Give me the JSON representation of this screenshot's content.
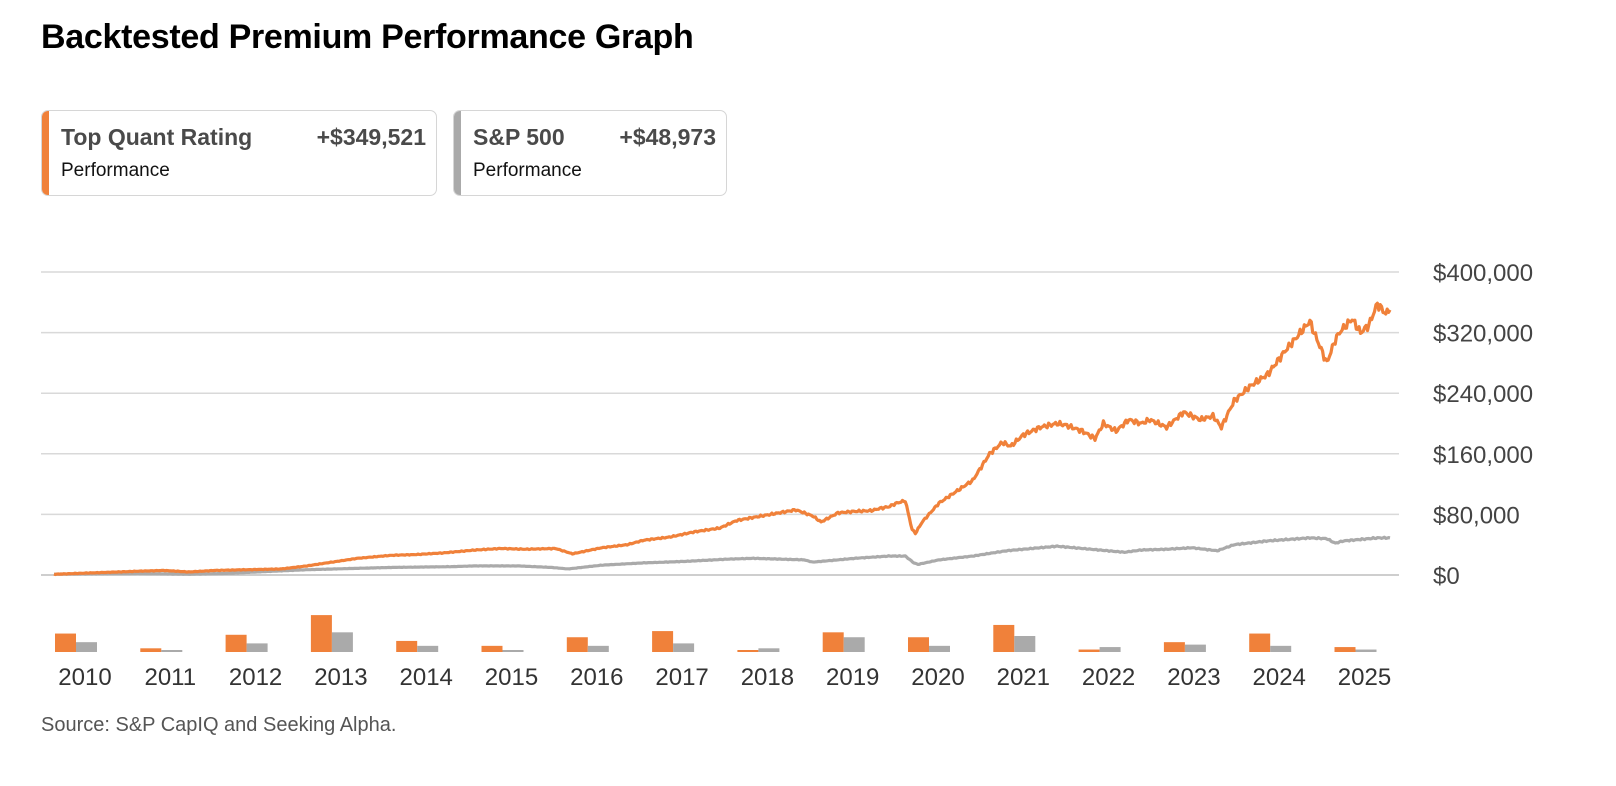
{
  "title": "Backtested Premium Performance Graph",
  "legend": [
    {
      "name": "Top Quant Rating",
      "value": "+$349,521",
      "sub": "Performance",
      "color": "#f0813a"
    },
    {
      "name": "S&P 500",
      "value": "+$48,973",
      "sub": "Performance",
      "color": "#aaaaaa"
    }
  ],
  "source": "Source: S&P CapIQ and Seeking Alpha.",
  "chart_data": {
    "type": "line",
    "title": "Backtested Premium Performance Graph",
    "xlabel": "",
    "ylabel": "",
    "ylim": [
      0,
      400000
    ],
    "y_ticks": [
      0,
      80000,
      160000,
      240000,
      320000,
      400000
    ],
    "y_tick_labels": [
      "$0",
      "$80,000",
      "$160,000",
      "$240,000",
      "$320,000",
      "$400,000"
    ],
    "x_range": [
      2010.0,
      2025.85
    ],
    "series": [
      {
        "name": "Top Quant Rating",
        "color": "#f0813a",
        "x": [
          2010.0,
          2010.5,
          2011.0,
          2011.3,
          2011.6,
          2011.9,
          2012.3,
          2012.7,
          2013.0,
          2013.3,
          2013.6,
          2014.0,
          2014.3,
          2014.6,
          2015.0,
          2015.3,
          2015.6,
          2015.95,
          2016.15,
          2016.5,
          2016.8,
          2017.0,
          2017.3,
          2017.6,
          2017.9,
          2018.1,
          2018.4,
          2018.7,
          2018.8,
          2019.0,
          2019.1,
          2019.3,
          2019.5,
          2019.7,
          2019.8,
          2019.9,
          2020.0,
          2020.1,
          2020.18,
          2020.22,
          2020.3,
          2020.5,
          2020.7,
          2020.9,
          2021.1,
          2021.25,
          2021.35,
          2021.5,
          2021.7,
          2021.9,
          2022.0,
          2022.2,
          2022.35,
          2022.45,
          2022.6,
          2022.75,
          2022.9,
          2023.0,
          2023.2,
          2023.4,
          2023.6,
          2023.75,
          2023.85,
          2024.0,
          2024.2,
          2024.4,
          2024.6,
          2024.75,
          2024.9,
          2024.95,
          2025.1,
          2025.2,
          2025.25,
          2025.4,
          2025.5,
          2025.6,
          2025.7,
          2025.8,
          2025.85
        ],
        "y": [
          1000,
          3000,
          5000,
          6000,
          4000,
          6000,
          7000,
          8000,
          12000,
          17000,
          22000,
          26000,
          27000,
          29000,
          33000,
          35000,
          34000,
          35000,
          28000,
          36000,
          40000,
          46000,
          50000,
          57000,
          62000,
          72000,
          78000,
          84000,
          86000,
          78000,
          70000,
          82000,
          84000,
          85000,
          88000,
          90000,
          95000,
          98000,
          60000,
          55000,
          70000,
          95000,
          110000,
          125000,
          160000,
          175000,
          170000,
          185000,
          195000,
          200000,
          198000,
          190000,
          180000,
          200000,
          190000,
          205000,
          200000,
          205000,
          195000,
          215000,
          205000,
          210000,
          195000,
          230000,
          250000,
          265000,
          295000,
          315000,
          335000,
          320000,
          280000,
          310000,
          320000,
          338000,
          320000,
          330000,
          358000,
          345000,
          350000
        ]
      },
      {
        "name": "S&P 500",
        "color": "#aaaaaa",
        "x": [
          2010.0,
          2011.0,
          2011.6,
          2012.0,
          2013.0,
          2014.0,
          2014.7,
          2015.0,
          2015.5,
          2015.9,
          2016.1,
          2016.5,
          2017.0,
          2017.5,
          2018.0,
          2018.3,
          2018.9,
          2019.0,
          2019.5,
          2019.9,
          2020.1,
          2020.2,
          2020.25,
          2020.5,
          2020.9,
          2021.3,
          2021.9,
          2022.0,
          2022.4,
          2022.7,
          2022.9,
          2023.2,
          2023.5,
          2023.8,
          2024.0,
          2024.4,
          2024.9,
          2025.1,
          2025.2,
          2025.3,
          2025.5,
          2025.7,
          2025.85
        ],
        "y": [
          1000,
          2000,
          1000,
          2000,
          7000,
          10000,
          11000,
          12000,
          12000,
          10000,
          8000,
          13000,
          16000,
          18000,
          21000,
          22000,
          20000,
          17000,
          22000,
          25000,
          25000,
          16000,
          14000,
          20000,
          25000,
          32000,
          38000,
          37000,
          33000,
          30000,
          33000,
          34000,
          36000,
          32000,
          40000,
          45000,
          49000,
          48000,
          42000,
          45000,
          47000,
          49000,
          49000
        ]
      }
    ],
    "annual_returns": {
      "years": [
        "2010",
        "2011",
        "2012",
        "2013",
        "2014",
        "2015",
        "2016",
        "2017",
        "2018",
        "2019",
        "2020",
        "2021",
        "2022",
        "2023",
        "2024",
        "2025"
      ],
      "Top Quant Rating": [
        15,
        3,
        14,
        30,
        9,
        5,
        12,
        17,
        1,
        16,
        12,
        22,
        2,
        8,
        15,
        4
      ],
      "S&P 500": [
        8,
        1,
        7,
        16,
        5,
        1,
        5,
        7,
        3,
        12,
        5,
        13,
        4,
        6,
        5,
        2
      ]
    }
  }
}
